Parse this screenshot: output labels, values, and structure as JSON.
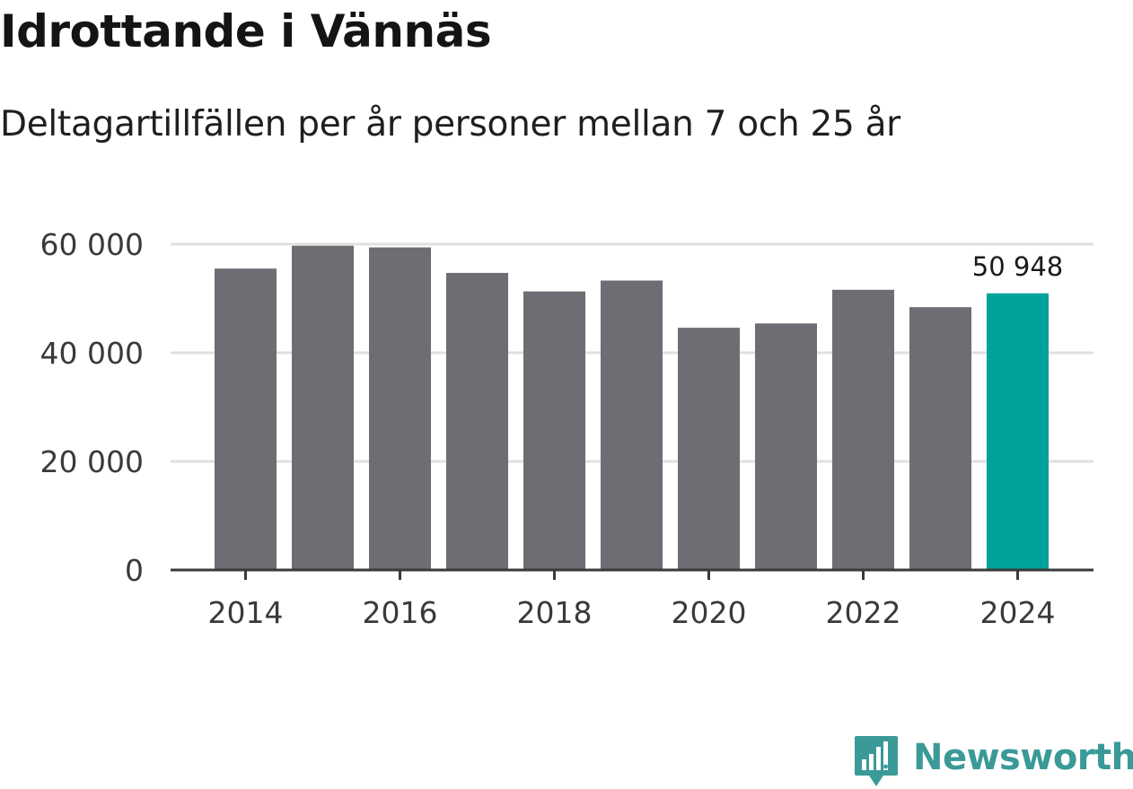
{
  "header": {
    "title": "Idrottande i Vännäs",
    "subtitle": "Deltagartillfällen per år personer mellan 7 och 25 år"
  },
  "branding": {
    "logo_text": "Newsworthy",
    "logo_color": "#3a9a97",
    "logo_icon": "bar-chart-speech-bubble-icon"
  },
  "chart_data": {
    "type": "bar",
    "title": "Idrottande i Vännäs",
    "subtitle": "Deltagartillfällen per år personer mellan 7 och 25 år",
    "categories": [
      "2014",
      "2015",
      "2016",
      "2017",
      "2018",
      "2019",
      "2020",
      "2021",
      "2022",
      "2023",
      "2024"
    ],
    "values": [
      55500,
      59700,
      59400,
      54700,
      51300,
      53300,
      44600,
      45400,
      51600,
      48400,
      50948
    ],
    "x_tick_labels": [
      "2014",
      "2016",
      "2018",
      "2020",
      "2022",
      "2024"
    ],
    "y_ticks": [
      0,
      20000,
      40000,
      60000
    ],
    "y_tick_labels": [
      "0",
      "20 000",
      "40 000",
      "60 000"
    ],
    "ylim": [
      0,
      60000
    ],
    "xlabel": "",
    "ylabel": "",
    "grid": true,
    "legend": "none",
    "highlight_index": 10,
    "highlight_label": "50 948",
    "colors": {
      "bar": "#6e6d73",
      "highlight": "#00a29a",
      "grid": "#e0e0e0",
      "axis": "#3a3a3a"
    }
  }
}
